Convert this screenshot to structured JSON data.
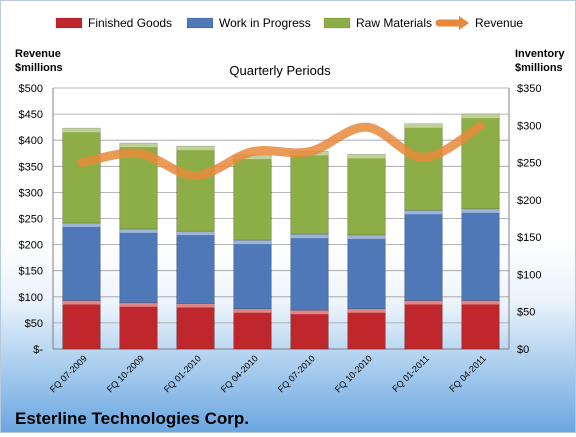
{
  "chart_data": {
    "type": "bar",
    "stacked": true,
    "title": "Quarterly Periods",
    "company": "Esterline Technologies Corp.",
    "categories": [
      "FQ 07-2009",
      "FQ 10-2009",
      "FQ 01-2010",
      "FQ 04-2010",
      "FQ 07-2010",
      "FQ 10-2010",
      "FQ 01-2011",
      "FQ 04-2011"
    ],
    "left_axis": {
      "label_line1": "Revenue",
      "label_line2": "$millions",
      "ylim": [
        0,
        500
      ],
      "ticks": [
        0,
        50,
        100,
        150,
        200,
        250,
        300,
        350,
        400,
        450,
        500
      ],
      "tick_labels": [
        "$-",
        "$50",
        "$100",
        "$150",
        "$200",
        "$250",
        "$300",
        "$350",
        "$400",
        "$450",
        "$500"
      ]
    },
    "right_axis": {
      "label_line1": "Inventory",
      "label_line2": "$millions",
      "ylim": [
        0,
        350
      ],
      "ticks": [
        0,
        50,
        100,
        150,
        200,
        250,
        300,
        350
      ],
      "tick_labels": [
        "$0",
        "$50",
        "$100",
        "$150",
        "$200",
        "$250",
        "$300",
        "$350"
      ]
    },
    "series": [
      {
        "name": "Finished Goods",
        "axis": "right",
        "color": "#c0272d",
        "values": [
          65,
          62,
          61,
          54,
          52,
          54,
          65,
          65
        ]
      },
      {
        "name": "Work in Progress",
        "axis": "right",
        "color": "#4f78b8",
        "values": [
          104,
          99,
          97,
          92,
          102,
          99,
          121,
          123
        ]
      },
      {
        "name": "Raw Materials",
        "axis": "right",
        "color": "#8dae47",
        "values": [
          127,
          115,
          114,
          114,
          111,
          108,
          116,
          127
        ]
      },
      {
        "name": "Revenue",
        "axis": "left",
        "type": "line",
        "color": "#e7893a",
        "values": [
          357,
          375,
          332,
          378,
          378,
          425,
          367,
          427
        ]
      }
    ],
    "legend_position": "top",
    "grid": true
  }
}
